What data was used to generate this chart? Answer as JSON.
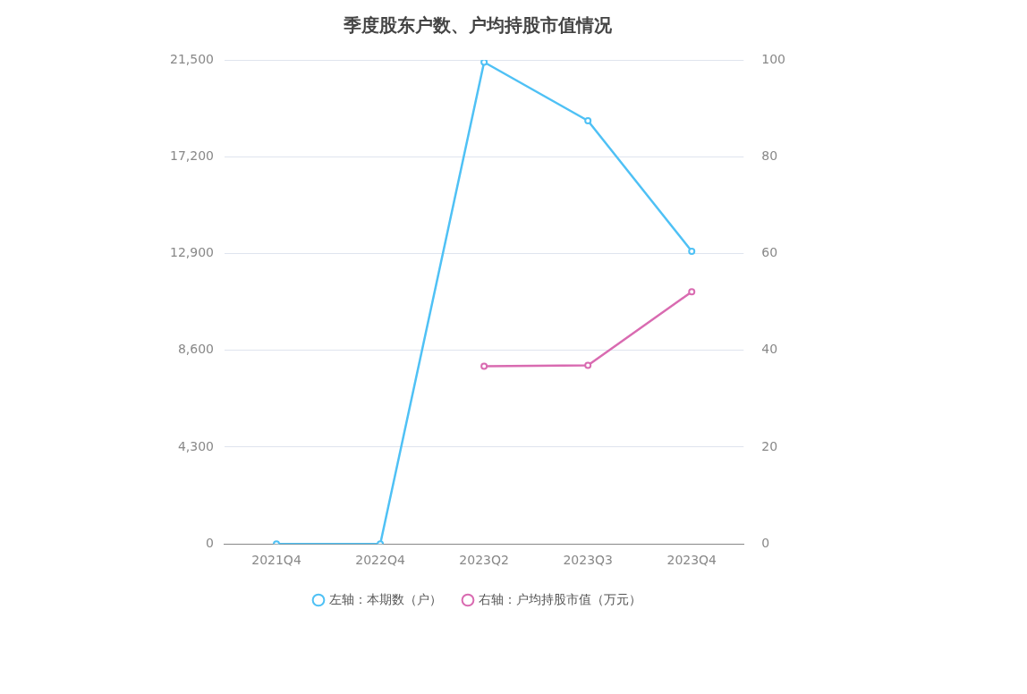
{
  "chart_data": {
    "type": "line",
    "title": "季度股东户数、户均持股市值情况",
    "categories": [
      "2021Q4",
      "2022Q4",
      "2023Q2",
      "2023Q3",
      "2023Q4"
    ],
    "series": [
      {
        "name": "左轴：本期数（户）",
        "color": "#4fc1f5",
        "values": [
          0,
          0,
          21400,
          18800,
          13000
        ]
      },
      {
        "name": "右轴：户均持股市值（万元）",
        "color": "#d96bb1",
        "axis": "y2",
        "values": [
          null,
          null,
          36.7,
          36.9,
          52.1
        ]
      }
    ],
    "ylim": [
      0,
      21500
    ],
    "yticks": [
      0,
      {
        "value": 4300,
        "label": "4,300"
      },
      {
        "value": 8600,
        "label": "8,600"
      },
      {
        "value": 12900,
        "label": "12,900"
      },
      {
        "value": 17200,
        "label": "17,200"
      },
      {
        "value": 21500,
        "label": "21,500"
      }
    ],
    "y2lim": [
      0,
      100
    ],
    "y2ticks": [
      0,
      20,
      40,
      60,
      80,
      100
    ],
    "grid": "y",
    "legend": "bottom",
    "marker": "circle",
    "line_style": "solid"
  }
}
